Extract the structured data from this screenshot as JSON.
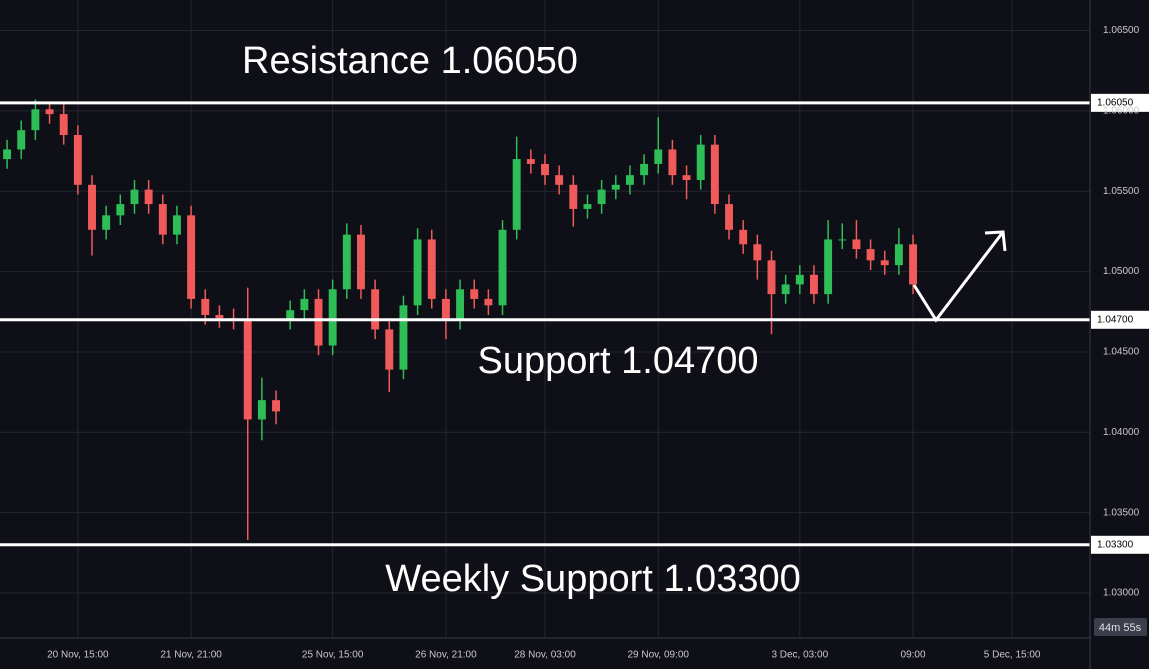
{
  "chart_data": {
    "type": "candlestick",
    "categories": [
      null,
      null,
      null,
      null,
      null,
      "20 Nov, 15:00",
      null,
      null,
      null,
      null,
      null,
      null,
      null,
      "21 Nov, 21:00",
      null,
      null,
      null,
      null,
      null,
      null,
      null,
      null,
      null,
      "25 Nov, 15:00",
      null,
      null,
      null,
      null,
      null,
      null,
      null,
      "26 Nov, 21:00",
      null,
      null,
      null,
      null,
      null,
      null,
      "28 Nov, 03:00",
      null,
      null,
      null,
      null,
      null,
      null,
      null,
      "29 Nov, 09:00",
      null,
      null,
      null,
      null,
      null,
      null,
      null,
      null,
      null,
      "3 Dec, 03:00",
      null,
      null,
      null,
      null,
      null,
      null,
      null,
      "09:00",
      null,
      null,
      null,
      null,
      null,
      null,
      "5 Dec, 15:00",
      null,
      null,
      null,
      null,
      null
    ],
    "open": [
      1.057,
      1.0576,
      1.0588,
      1.0601,
      1.0598,
      1.0585,
      1.0554,
      1.0526,
      1.0535,
      1.0542,
      1.0551,
      1.0542,
      1.0523,
      1.0535,
      1.0483,
      1.0473,
      1.0471,
      1.047,
      1.0408,
      1.042,
      1.047,
      1.0476,
      1.0483,
      1.0454,
      1.0489,
      1.0523,
      1.0489,
      1.0464,
      1.0439,
      1.0479,
      1.052,
      1.0483,
      1.047,
      1.0489,
      1.0483,
      1.0479,
      1.0526,
      1.057,
      1.0567,
      1.056,
      1.0554,
      1.0539,
      1.0542,
      1.0551,
      1.0554,
      1.056,
      1.0567,
      1.0576,
      1.056,
      1.0557,
      1.0579,
      1.0542,
      1.0526,
      1.0517,
      1.0507,
      1.0486,
      1.0492,
      1.0498,
      1.0486,
      1.052,
      1.052,
      1.0514,
      1.0507,
      1.0504,
      1.0517,
      null,
      null,
      null,
      null,
      null,
      null,
      null,
      null,
      null,
      null,
      null,
      null
    ],
    "high": [
      1.0582,
      1.0594,
      1.0607,
      1.0605,
      1.0604,
      1.0591,
      1.056,
      1.0541,
      1.0548,
      1.0557,
      1.0557,
      1.0548,
      1.0541,
      1.0541,
      1.0489,
      1.0479,
      1.0477,
      1.049,
      1.0434,
      1.0426,
      1.0482,
      1.0489,
      1.0489,
      1.0495,
      1.053,
      1.0529,
      1.0495,
      1.047,
      1.0485,
      1.0527,
      1.0526,
      1.0489,
      1.0495,
      1.0495,
      1.0489,
      1.0532,
      1.0584,
      1.0576,
      1.0573,
      1.0566,
      1.056,
      1.0548,
      1.0557,
      1.056,
      1.0566,
      1.0573,
      1.0596,
      1.0582,
      1.0566,
      1.0585,
      1.0585,
      1.0548,
      1.0532,
      1.0523,
      1.0513,
      1.0498,
      1.0504,
      1.0504,
      1.0532,
      1.053,
      1.0532,
      1.052,
      1.0513,
      1.0527,
      1.0523,
      null,
      null,
      null,
      null,
      null,
      null,
      null,
      null,
      null,
      null,
      null,
      null
    ],
    "low": [
      1.0564,
      1.057,
      1.0582,
      1.0592,
      1.0579,
      1.0548,
      1.051,
      1.052,
      1.0529,
      1.0536,
      1.0536,
      1.0517,
      1.0517,
      1.0477,
      1.0467,
      1.0465,
      1.0464,
      1.0333,
      1.0395,
      1.0405,
      1.0464,
      1.047,
      1.0448,
      1.0448,
      1.0483,
      1.0483,
      1.0458,
      1.0425,
      1.0433,
      1.0473,
      1.0477,
      1.0458,
      1.0464,
      1.0477,
      1.0473,
      1.0473,
      1.052,
      1.0561,
      1.0554,
      1.0548,
      1.0528,
      1.0533,
      1.0536,
      1.0545,
      1.0548,
      1.0554,
      1.0561,
      1.0554,
      1.0545,
      1.0551,
      1.0536,
      1.052,
      1.0511,
      1.0495,
      1.0461,
      1.048,
      1.0486,
      1.048,
      1.048,
      1.0514,
      1.0508,
      1.0501,
      1.0498,
      1.0498,
      1.0486,
      null,
      null,
      null,
      null,
      null,
      null,
      null,
      null,
      null,
      null,
      null,
      null
    ],
    "close": [
      1.0576,
      1.0588,
      1.0601,
      1.0598,
      1.0585,
      1.0554,
      1.0526,
      1.0535,
      1.0542,
      1.0551,
      1.0542,
      1.0523,
      1.0535,
      1.0483,
      1.0473,
      1.0471,
      1.047,
      1.0408,
      1.042,
      1.0413,
      1.0476,
      1.0483,
      1.0454,
      1.0489,
      1.0523,
      1.0489,
      1.0464,
      1.0439,
      1.0479,
      1.052,
      1.0483,
      1.047,
      1.0489,
      1.0483,
      1.0479,
      1.0526,
      1.057,
      1.0567,
      1.056,
      1.0554,
      1.0539,
      1.0542,
      1.0551,
      1.0554,
      1.056,
      1.0567,
      1.0576,
      1.056,
      1.0557,
      1.0579,
      1.0542,
      1.0526,
      1.0517,
      1.0507,
      1.0486,
      1.0492,
      1.0498,
      1.0486,
      1.052,
      1.052,
      1.0514,
      1.0507,
      1.0504,
      1.0517,
      1.0492,
      null,
      null,
      null,
      null,
      null,
      null,
      null,
      null,
      null,
      null,
      null,
      null
    ],
    "up_color": "#2ebd56",
    "down_color": "#f05a5a",
    "ylim": [
      1.0272,
      1.0669
    ],
    "yticks": [
      {
        "value": 1.065,
        "label": "1.06500"
      },
      {
        "value": 1.06,
        "label": "1.06000"
      },
      {
        "value": 1.055,
        "label": "1.05500"
      },
      {
        "value": 1.05,
        "label": "1.05000"
      },
      {
        "value": 1.045,
        "label": "1.04500"
      },
      {
        "value": 1.04,
        "label": "1.04000"
      },
      {
        "value": 1.035,
        "label": "1.03500"
      },
      {
        "value": 1.03,
        "label": "1.03000"
      }
    ],
    "grid": true,
    "levels": [
      {
        "value": 1.0605,
        "label": "1.06050",
        "text": "Resistance 1.06050"
      },
      {
        "value": 1.047,
        "label": "1.04700",
        "text": "Support 1.04700"
      },
      {
        "value": 1.033,
        "label": "1.03300",
        "text": "Weekly Support 1.03300"
      }
    ],
    "countdown": "44m 55s"
  }
}
